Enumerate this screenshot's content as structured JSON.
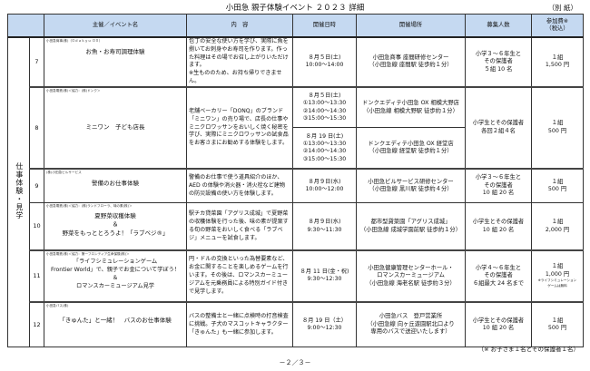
{
  "title": "小田急 親子体験イベント ２０２３ 詳細",
  "annex": "（別 紙）",
  "headers": {
    "event": "主催／イベント名",
    "content": "内　容",
    "date": "開催日時",
    "place": "開催場所",
    "capacity": "募集人数",
    "fee": "参加費※\n（税込）"
  },
  "category": "仕事体験・見学",
  "rows": [
    {
      "num": "7",
      "org": "小田急商事(株)（Ｏｄａｋｙｕ ＯＸ）",
      "name": "お魚・お寿司調理体験",
      "content": "包丁の安全な使い方を学び、実際に魚を捌いてお刺身やお寿司を作ります。作った料理はその場でお召し上がりいただけます。\n※生もののため、お持ち帰りできません。",
      "date": "８月５日(土)\n10:00～14:00",
      "place": "小田急商事 座間研修センター\n（小田急線 座間駅 徒歩約１分）",
      "capacity": "小学３～６年生と\nその保護者\n５組 10 名",
      "fee": "１組\n1,500 円"
    },
    {
      "num": "8",
      "org": "小田急電鉄(株)＜協力：(株)ドンク＞",
      "name": "ミニワン　子ども店長",
      "content": "老舗ベーカリー「DONQ」のブランド「ミニワン」の売り場で、店長の仕事やミニクロワッサンをおいしく焼く秘密を学び、実際にミニクロワッサンの試食品をお客さまにお勧めする体験をします。",
      "date": "８月５日(土)\n①13:00～13:30\n②14:00～14:30\n③15:00～15:30",
      "place": "ドンクエディテ小田急 OX 相模大野店\n（小田急線 相模大野駅 徒歩約１分）",
      "date2": "８月 19 日(土)\n①13:00～13:30\n②14:00～14:30\n③15:00～15:30",
      "place2": "ドンクエディテ小田急 OX 経堂店\n（小田急線 経堂駅 徒歩約１分）",
      "capacity": "小学生とその保護者\n各回２組４名",
      "fee": "１組\n500 円"
    },
    {
      "num": "9",
      "org": "(株)小田急ビルサービス",
      "name": "警備のお仕事体験",
      "content": "警備のお仕事で使う道具紹介のほか、AED の体験や消火器・消火栓など建物の防災設備の使い方を体験します。",
      "date": "８月９日(水)\n10:00～12:00",
      "place": "小田急ビルサービス研修センター\n（小田急線 黒川駅 徒歩約４分）",
      "capacity": "小学３～６年生と\nその保護者\n10 組 20 名",
      "fee": "１組\n500 円"
    },
    {
      "num": "10",
      "org": "小田急電鉄(株)＜協力：(株)ランドフローラ、味の素(株)＞",
      "name": "夏野菜収穫体験\n＆\n野菜をもっととろうよ！「ラブベジ®」",
      "content": "駅チカ貸菜園「アグリス成城」で夏野菜の収穫体験を行った後、味の素が提案する旬の野菜をおいしく食べる「ラブベジ」メニューを試食します。",
      "date": "８月９日(水)\n9:30～11:30",
      "place": "都市型貸菜園「アグリス成城」\n（小田急線 成城学園前駅 徒歩約１分）",
      "capacity": "小学生とその保護者\n10 組 20 名",
      "fee": "１組\n2,000 円"
    },
    {
      "num": "11",
      "org": "小田急電鉄(株)＜協力：第一フロンティア生命保険(株)＞",
      "name": "「ライフシミュレーションゲーム\nFrontier World」で、親子でお金について学ぼう！\n＆\nロマンスカーミュージアム見学",
      "content": "円・ドルの交換といった為替要素など、お金に関することを楽しめるゲームを行います。その後は、ロマンスカーミュージアムを元乗務員による特別ガイド付きで見学します。",
      "date": "８月 11 日(金・祝)\n9:30～12:30",
      "place": "小田急健康管理センターホール・\nロマンスカーミュージアム\n（小田急線 海老名駅 徒歩約３分）",
      "capacity": "小学４～６年生と\nその保護者\n６組最大 24 名まで",
      "fee": "１組\n1,000 円",
      "fee_note": "※ライフシミュレーション\nゲームは無料"
    },
    {
      "num": "12",
      "org": "小田急バス(株)",
      "name": "「きゅんた」と一緒！　バスのお仕事体験",
      "content": "バスの整備士と一緒に点検時の打音検査に挑戦。子犬のマスコットキャラクター「きゅんた」も一緒に参加します。",
      "date": "８月 19 日（土）\n9:00～12:30",
      "place": "小田急バス　登戸営業所\n（小田急線 向ヶ丘遊園駅北口より\n専用のバスで送迎いたします）",
      "capacity": "小学生とその保護者\n10 組 20 名",
      "fee": "１組\n500 円"
    }
  ],
  "footnote": "（※ お子さま１名とその保護者１名）",
  "page": "－２／３－",
  "colors": {
    "header_bg": "#c5d9f1",
    "border": "#333333"
  }
}
